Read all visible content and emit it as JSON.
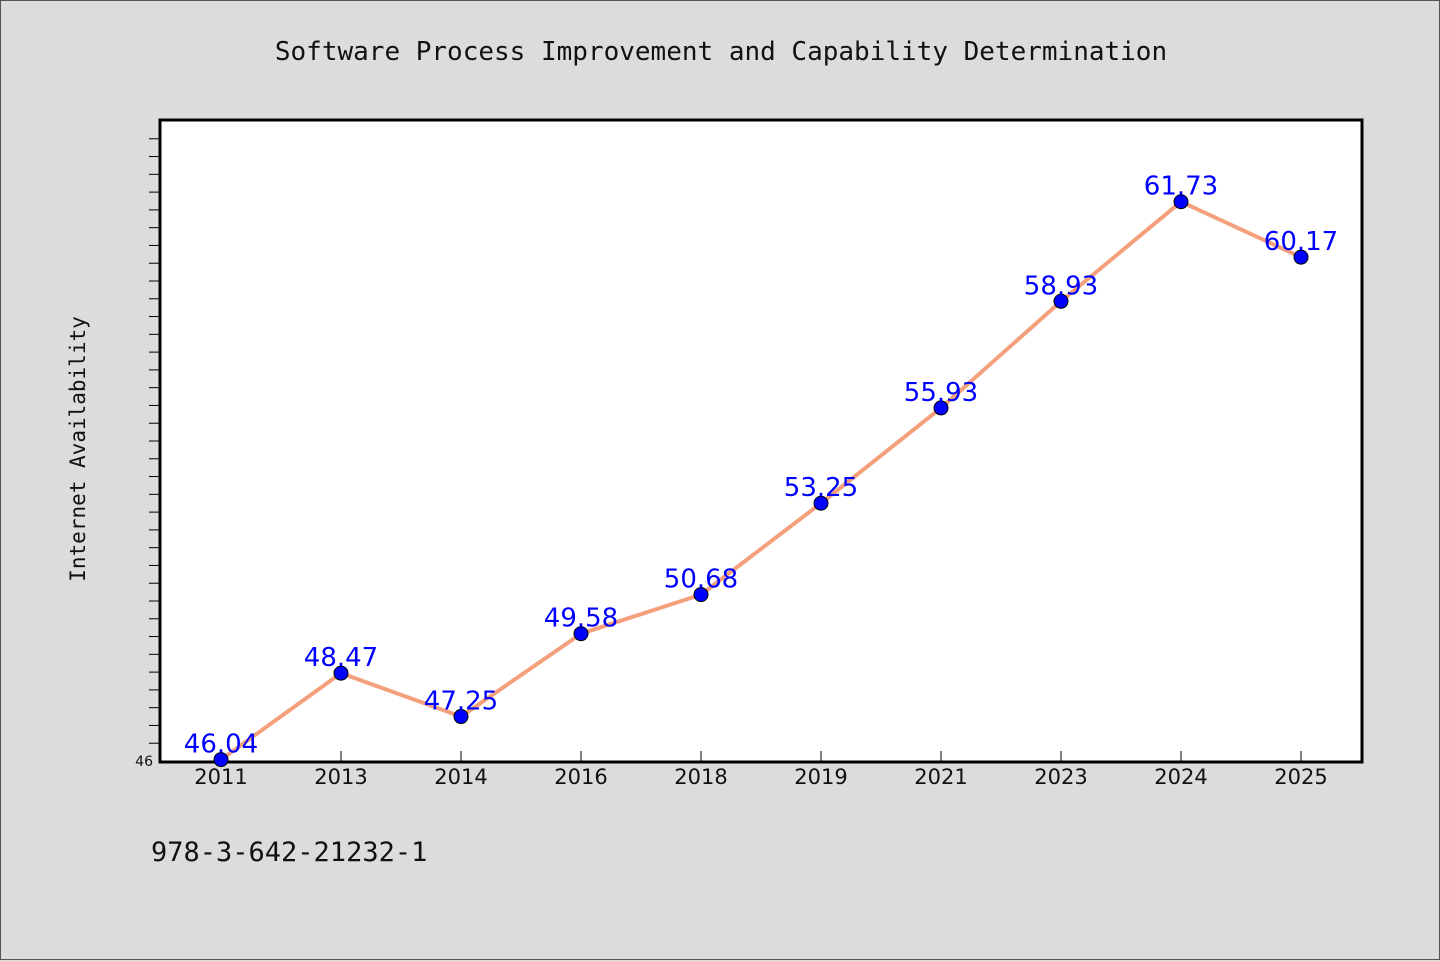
{
  "chart_data": {
    "type": "line",
    "title": "Software Process Improvement and Capability Determination",
    "ylabel": "Internet Availability",
    "xlabel": "",
    "categories": [
      "2011",
      "2013",
      "2014",
      "2016",
      "2018",
      "2019",
      "2021",
      "2023",
      "2024",
      "2025"
    ],
    "series": [
      {
        "values": [
          46.04,
          48.47,
          47.25,
          49.58,
          50.68,
          53.25,
          55.93,
          58.93,
          61.73,
          60.17
        ]
      }
    ],
    "ytick_labels": [
      "46"
    ],
    "ylim": [
      46,
      64
    ],
    "grid": false,
    "legend": "none",
    "colors": {
      "line": "#f4a07c",
      "marker": "#0000ff",
      "data_label": "#0000ff",
      "plot_background": "#ffffff",
      "figure_background": "#dcdcdc"
    }
  },
  "footnote": "978-3-642-21232-1"
}
